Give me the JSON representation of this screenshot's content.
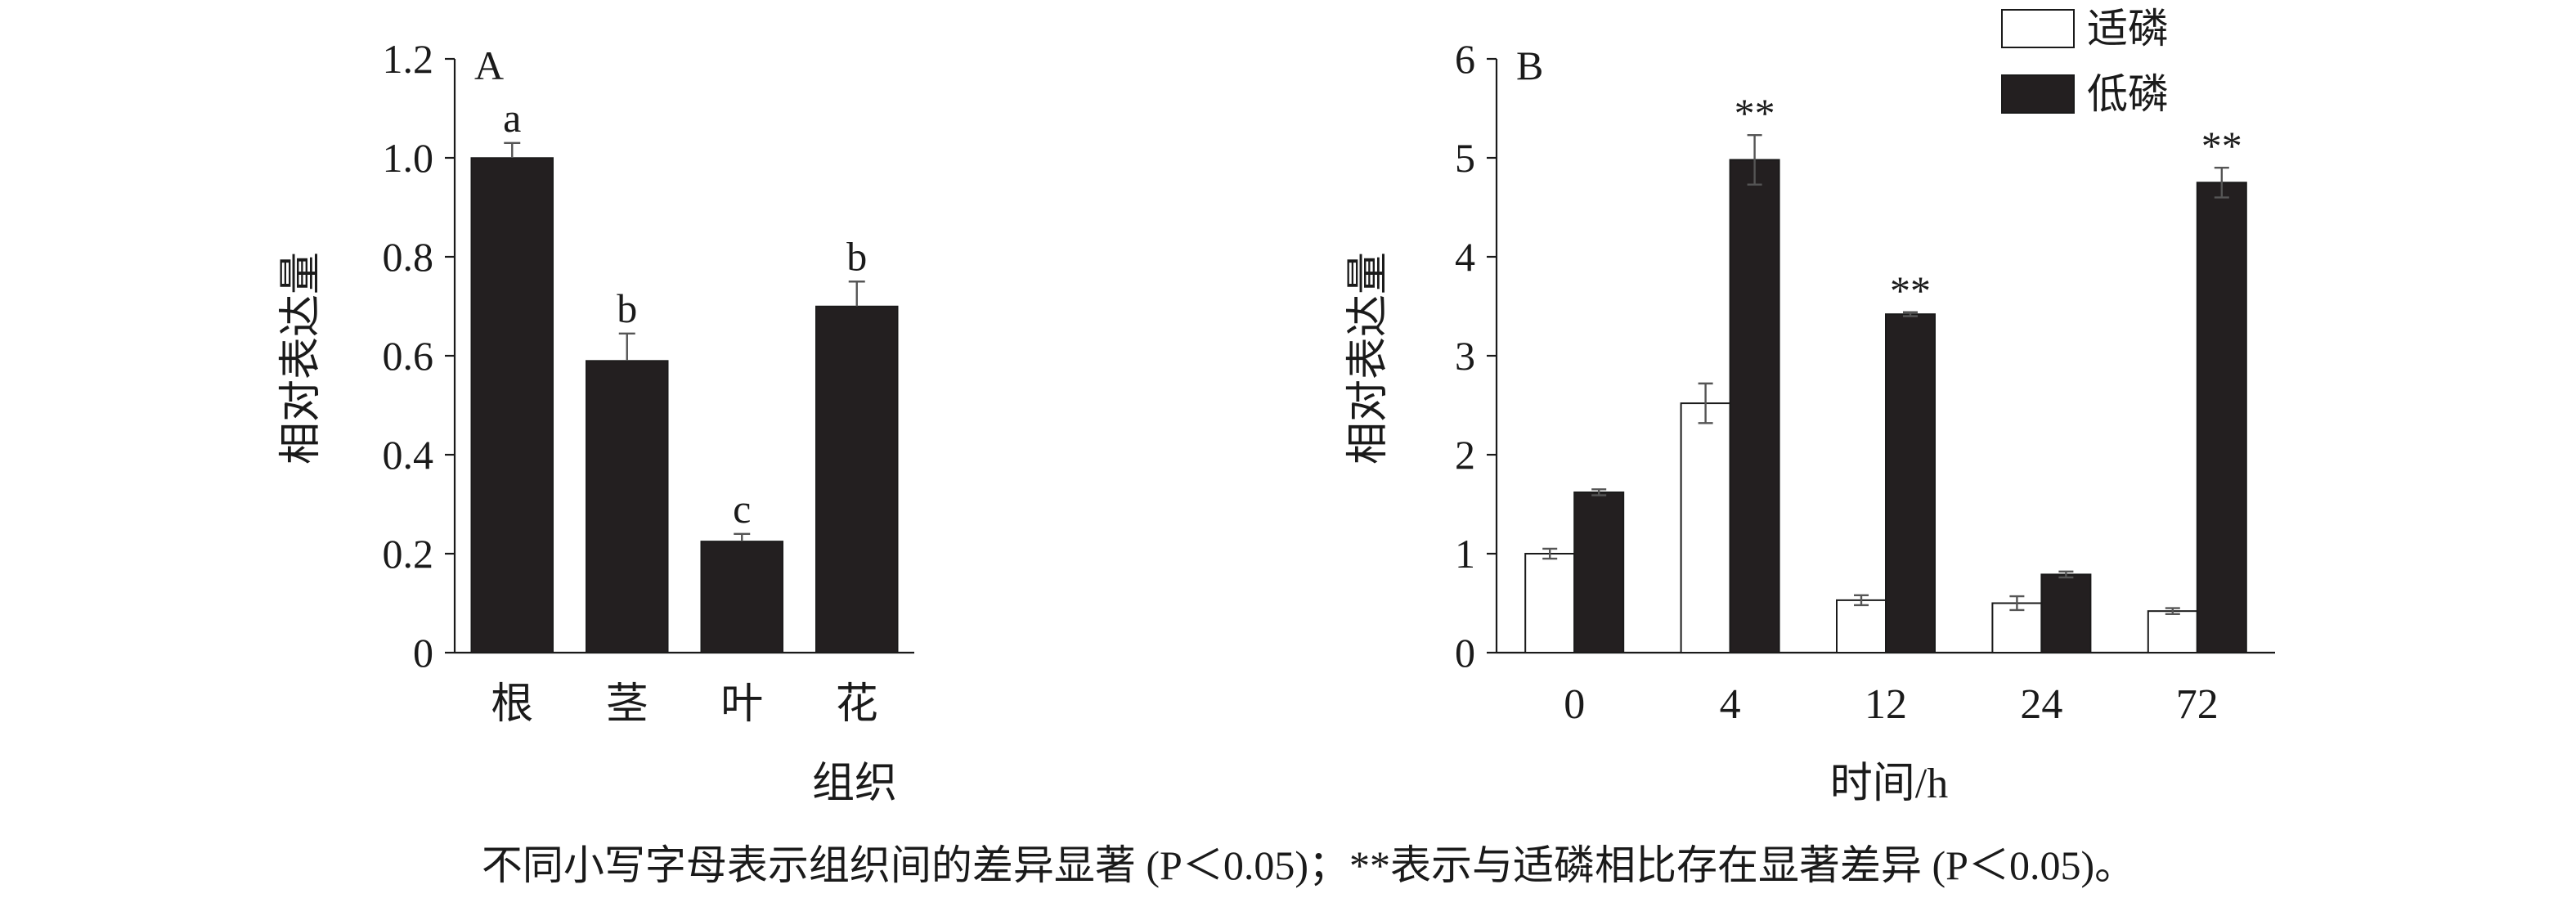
{
  "chart_data": [
    {
      "type": "bar",
      "panel": "A",
      "xlabel": "组织",
      "ylabel": "相对表达量",
      "ylim": [
        0,
        1.2
      ],
      "yticks": [
        "0",
        "0.2",
        "0.4",
        "0.6",
        "0.8",
        "1.0",
        "1.2"
      ],
      "categories": [
        "根",
        "茎",
        "叶",
        "花"
      ],
      "values": [
        1.0,
        0.59,
        0.225,
        0.7
      ],
      "errors": [
        0.03,
        0.055,
        0.015,
        0.05
      ],
      "labels": [
        "a",
        "b",
        "c",
        "b"
      ],
      "bar_color": "#231f20"
    },
    {
      "type": "bar",
      "panel": "B",
      "xlabel": "时间/h",
      "ylabel": "相对表达量",
      "ylim": [
        0,
        6
      ],
      "yticks": [
        "0",
        "1",
        "2",
        "3",
        "4",
        "5",
        "6"
      ],
      "categories": [
        "0",
        "4",
        "12",
        "24",
        "72"
      ],
      "series": [
        {
          "name": "适磷",
          "color": "#ffffff",
          "values": [
            1.0,
            2.52,
            0.53,
            0.5,
            0.42
          ],
          "errors": [
            0.05,
            0.2,
            0.05,
            0.07,
            0.03
          ]
        },
        {
          "name": "低磷",
          "color": "#231f20",
          "values": [
            1.62,
            4.98,
            3.42,
            0.79,
            4.75
          ],
          "errors": [
            0.03,
            0.25,
            0.02,
            0.03,
            0.15
          ]
        }
      ],
      "significance": [
        "",
        "**",
        "**",
        "",
        "**"
      ],
      "legend_placement": "top-right"
    }
  ],
  "caption": "不同小写字母表示组织间的差异显著 (P＜0.05)；**表示与适磷相比存在显著差异 (P＜0.05)。"
}
